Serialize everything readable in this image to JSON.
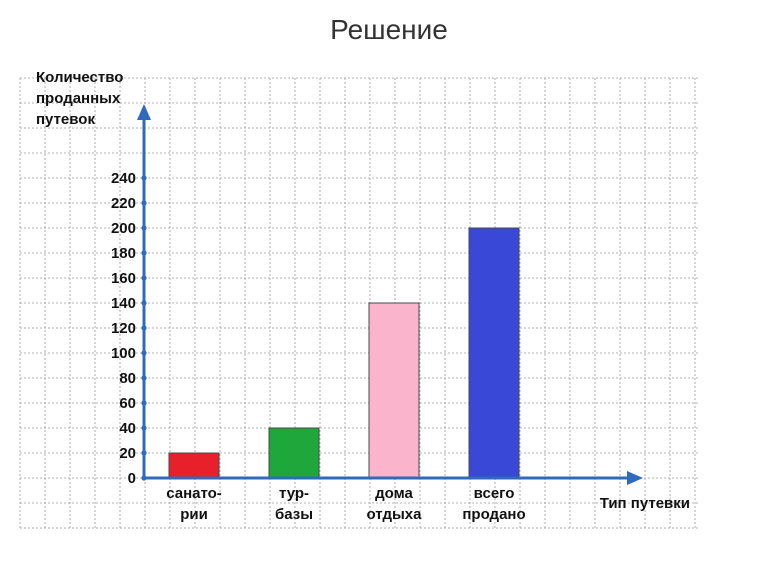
{
  "page": {
    "heading": "Решение"
  },
  "chart_data": {
    "type": "bar",
    "categories": [
      {
        "line1": "санато-",
        "line2": "рии"
      },
      {
        "line1": "тур-",
        "line2": "базы"
      },
      {
        "line1": "дома",
        "line2": "отдыха"
      },
      {
        "line1": "всего",
        "line2": "продано"
      }
    ],
    "values": [
      20,
      40,
      140,
      200
    ],
    "bar_colors": [
      "#e8202a",
      "#1ea83c",
      "#fab4cc",
      "#3a48d8"
    ],
    "ylabel_lines": [
      "Количество",
      "проданных",
      "путевок"
    ],
    "xlabel": "Тип путевки",
    "y_ticks": [
      "0",
      "20",
      "40",
      "60",
      "80",
      "100",
      "120",
      "140",
      "160",
      "180",
      "200",
      "220",
      "240"
    ],
    "ylim": [
      0,
      240
    ],
    "grid": true,
    "axis_color": "#2f6bbd",
    "grid_color": "#9a9a9a"
  }
}
